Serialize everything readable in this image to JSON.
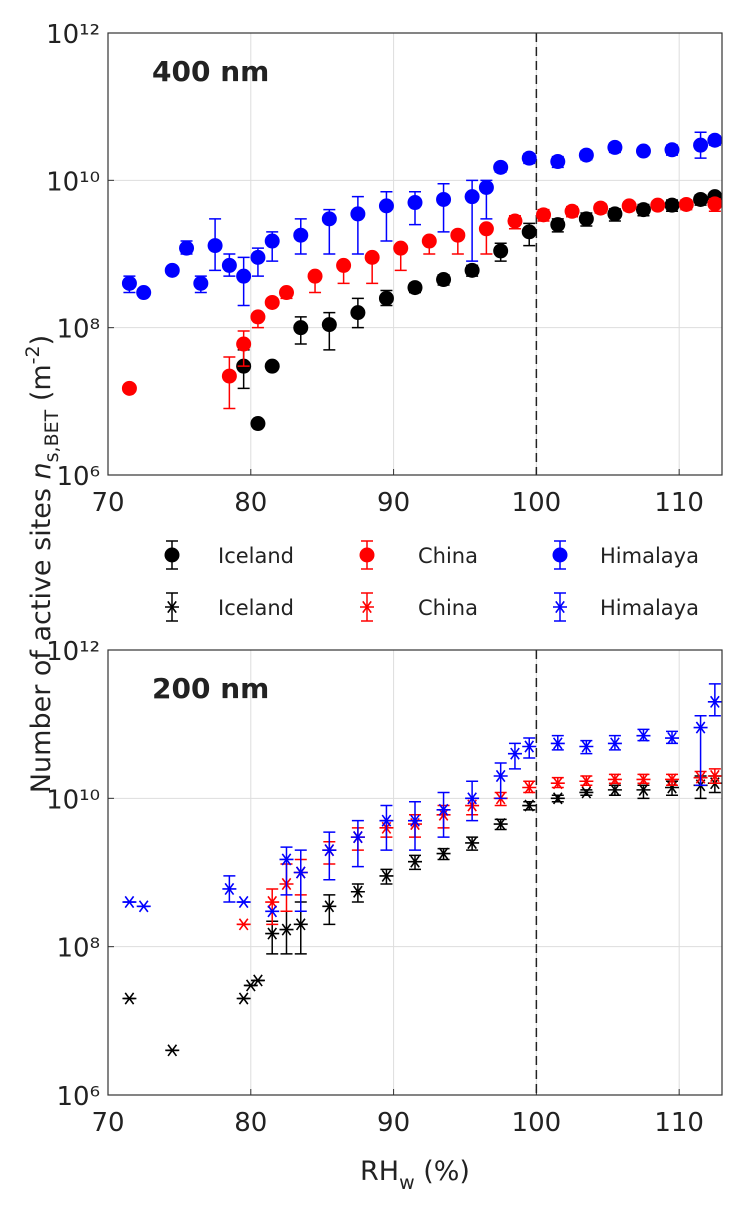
{
  "chart_data": [
    {
      "type": "scatter",
      "title": "400 nm",
      "marker": "circle",
      "log_y": true,
      "grid": true,
      "vline": 100,
      "ylabel_parts": [
        "Number of active sites ",
        "n",
        "s,BET",
        " (m",
        "-2",
        ")"
      ],
      "xlim": [
        70,
        113
      ],
      "xticks": [
        70,
        80,
        90,
        100,
        110
      ],
      "ylim": [
        1000000.0,
        1000000000000.0
      ],
      "yticks": [
        {
          "value": 1000000.0,
          "label": "10⁶"
        },
        {
          "value": 100000000.0,
          "label": "10⁸"
        },
        {
          "value": 10000000000.0,
          "label": "10¹⁰"
        },
        {
          "value": 1000000000000.0,
          "label": "10¹²"
        }
      ],
      "series": [
        {
          "name": "Iceland",
          "color": "#000000",
          "x": [
            79.5,
            80.5,
            81.5,
            83.5,
            85.5,
            87.5,
            89.5,
            91.5,
            93.5,
            95.5,
            97.5,
            99.5,
            101.5,
            103.5,
            105.5,
            107.5,
            109.5,
            111.5,
            112.5
          ],
          "values": [
            30000000.0,
            5000000.0,
            30000000.0,
            100000000.0,
            110000000.0,
            160000000.0,
            250000000.0,
            350000000.0,
            450000000.0,
            600000000.0,
            1100000000.0,
            2000000000.0,
            2500000000.0,
            3000000000.0,
            3500000000.0,
            4000000000.0,
            4600000000.0,
            5500000000.0,
            6000000000.0
          ],
          "lower": [
            15000000.0,
            5000000.0,
            30000000.0,
            60000000.0,
            50000000.0,
            100000000.0,
            200000000.0,
            300000000.0,
            380000000.0,
            500000000.0,
            800000000.0,
            1300000000.0,
            2000000000.0,
            2400000000.0,
            2800000000.0,
            3300000000.0,
            3800000000.0,
            4600000000.0,
            5000000000.0
          ],
          "upper": [
            50000000.0,
            5000000.0,
            30000000.0,
            140000000.0,
            160000000.0,
            250000000.0,
            320000000.0,
            400000000.0,
            520000000.0,
            700000000.0,
            1400000000.0,
            2600000000.0,
            3000000000.0,
            3600000000.0,
            4100000000.0,
            4700000000.0,
            5400000000.0,
            6300000000.0,
            6800000000.0
          ]
        },
        {
          "name": "China",
          "color": "#ff0000",
          "x": [
            71.5,
            78.5,
            79.5,
            80.5,
            81.5,
            82.5,
            84.5,
            86.5,
            88.5,
            90.5,
            92.5,
            94.5,
            96.5,
            98.5,
            100.5,
            102.5,
            104.5,
            106.5,
            108.5,
            110.5,
            112.5
          ],
          "values": [
            15000000.0,
            22000000.0,
            60000000.0,
            140000000.0,
            220000000.0,
            300000000.0,
            500000000.0,
            700000000.0,
            900000000.0,
            1200000000.0,
            1500000000.0,
            1800000000.0,
            2200000000.0,
            2800000000.0,
            3400000000.0,
            3800000000.0,
            4200000000.0,
            4500000000.0,
            4600000000.0,
            4700000000.0,
            4800000000.0
          ],
          "lower": [
            15000000.0,
            8000000.0,
            30000000.0,
            100000000.0,
            200000000.0,
            250000000.0,
            300000000.0,
            400000000.0,
            400000000.0,
            600000000.0,
            1000000000.0,
            1000000000.0,
            1000000000.0,
            2200000000.0,
            2800000000.0,
            3200000000.0,
            3600000000.0,
            3900000000.0,
            4000000000.0,
            4000000000.0,
            3800000000.0
          ],
          "upper": [
            15000000.0,
            40000000.0,
            90000000.0,
            140000000.0,
            220000000.0,
            300000000.0,
            500000000.0,
            700000000.0,
            900000000.0,
            1200000000.0,
            1500000000.0,
            1800000000.0,
            2200000000.0,
            3300000000.0,
            4000000000.0,
            4400000000.0,
            4800000000.0,
            5100000000.0,
            5200000000.0,
            5400000000.0,
            5600000000.0
          ]
        },
        {
          "name": "Himalaya",
          "color": "#0000ff",
          "x": [
            71.5,
            72.5,
            74.5,
            75.5,
            76.5,
            77.5,
            78.5,
            79.5,
            80.5,
            81.5,
            83.5,
            85.5,
            87.5,
            89.5,
            91.5,
            93.5,
            95.5,
            96.5,
            97.5,
            99.5,
            101.5,
            103.5,
            105.5,
            107.5,
            109.5,
            111.5,
            112.5
          ],
          "values": [
            400000000.0,
            300000000.0,
            600000000.0,
            1200000000.0,
            400000000.0,
            1300000000.0,
            700000000.0,
            500000000.0,
            900000000.0,
            1500000000.0,
            1800000000.0,
            3000000000.0,
            3500000000.0,
            4500000000.0,
            5000000000.0,
            5500000000.0,
            6000000000.0,
            8000000000.0,
            15000000000.0,
            20000000000.0,
            18000000000.0,
            22000000000.0,
            28000000000.0,
            25000000000.0,
            26000000000.0,
            30000000000.0,
            35000000000.0
          ],
          "lower": [
            300000000.0,
            300000000.0,
            600000000.0,
            1000000000.0,
            300000000.0,
            600000000.0,
            500000000.0,
            200000000.0,
            500000000.0,
            800000000.0,
            1000000000.0,
            1000000000.0,
            1000000000.0,
            1500000000.0,
            2500000000.0,
            2000000000.0,
            800000000.0,
            3000000000.0,
            13000000000.0,
            17000000000.0,
            15000000000.0,
            19000000000.0,
            24000000000.0,
            22000000000.0,
            22000000000.0,
            20000000000.0,
            30000000000.0
          ],
          "upper": [
            500000000.0,
            300000000.0,
            600000000.0,
            1500000000.0,
            500000000.0,
            3000000000.0,
            1000000000.0,
            900000000.0,
            1200000000.0,
            2000000000.0,
            3000000000.0,
            4000000000.0,
            6000000000.0,
            7000000000.0,
            7000000000.0,
            9000000000.0,
            10000000000.0,
            10000000000.0,
            17000000000.0,
            23000000000.0,
            21000000000.0,
            25000000000.0,
            32000000000.0,
            28000000000.0,
            30000000000.0,
            45000000000.0,
            40000000000.0
          ]
        }
      ]
    },
    {
      "type": "scatter",
      "title": "200 nm",
      "marker": "star",
      "log_y": true,
      "grid": true,
      "vline": 100,
      "xlabel_parts": [
        "RH",
        "w",
        " (%)"
      ],
      "xlim": [
        70,
        113
      ],
      "xticks": [
        70,
        80,
        90,
        100,
        110
      ],
      "ylim": [
        1000000.0,
        1000000000000.0
      ],
      "yticks": [
        {
          "value": 1000000.0,
          "label": "10⁶"
        },
        {
          "value": 100000000.0,
          "label": "10⁸"
        },
        {
          "value": 10000000000.0,
          "label": "10¹⁰"
        },
        {
          "value": 1000000000000.0,
          "label": "10¹²"
        }
      ],
      "series": [
        {
          "name": "Iceland",
          "color": "#000000",
          "x": [
            71.5,
            74.5,
            79.5,
            80.0,
            80.5,
            81.5,
            82.5,
            83.5,
            85.5,
            87.5,
            89.5,
            91.5,
            93.5,
            95.5,
            97.5,
            99.5,
            101.5,
            103.5,
            105.5,
            107.5,
            109.5,
            111.5,
            112.5
          ],
          "values": [
            20000000.0,
            4000000.0,
            20000000.0,
            30000000.0,
            35000000.0,
            150000000.0,
            170000000.0,
            200000000.0,
            350000000.0,
            550000000.0,
            900000000.0,
            1400000000.0,
            1800000000.0,
            2500000000.0,
            4500000000.0,
            8000000000.0,
            10000000000.0,
            12000000000.0,
            13000000000.0,
            13000000000.0,
            14000000000.0,
            15000000000.0,
            16000000000.0
          ],
          "lower": [
            20000000.0,
            4000000.0,
            20000000.0,
            30000000.0,
            35000000.0,
            80000000.0,
            80000000.0,
            80000000.0,
            200000000.0,
            400000000.0,
            700000000.0,
            1100000000.0,
            1500000000.0,
            2000000000.0,
            3800000000.0,
            7000000000.0,
            9000000000.0,
            11000000000.0,
            11000000000.0,
            10000000000.0,
            11000000000.0,
            10000000000.0,
            12000000000.0
          ],
          "upper": [
            20000000.0,
            4000000.0,
            20000000.0,
            30000000.0,
            35000000.0,
            220000000.0,
            300000000.0,
            400000000.0,
            500000000.0,
            700000000.0,
            1100000000.0,
            1700000000.0,
            2100000000.0,
            3000000000.0,
            5200000000.0,
            9000000000.0,
            11000000000.0,
            13000000000.0,
            15000000000.0,
            15000000000.0,
            17000000000.0,
            20000000000.0,
            20000000000.0
          ]
        },
        {
          "name": "China",
          "color": "#ff0000",
          "x": [
            79.5,
            81.5,
            82.5,
            83.5,
            85.5,
            87.5,
            89.5,
            91.5,
            93.5,
            95.5,
            97.5,
            99.5,
            101.5,
            103.5,
            105.5,
            107.5,
            109.5,
            111.5,
            112.5
          ],
          "values": [
            200000000.0,
            400000000.0,
            700000000.0,
            1000000000.0,
            2000000000.0,
            3000000000.0,
            4000000000.0,
            4500000000.0,
            6000000000.0,
            8000000000.0,
            10000000000.0,
            14000000000.0,
            16000000000.0,
            17000000000.0,
            18000000000.0,
            18000000000.0,
            18000000000.0,
            19000000000.0,
            20000000000.0
          ],
          "lower": [
            200000000.0,
            200000000.0,
            300000000.0,
            500000000.0,
            1300000000.0,
            2000000000.0,
            3000000000.0,
            3000000000.0,
            4000000000.0,
            6000000000.0,
            8000000000.0,
            12000000000.0,
            14000000000.0,
            15000000000.0,
            16000000000.0,
            16000000000.0,
            15000000000.0,
            15000000000.0,
            16000000000.0
          ],
          "upper": [
            200000000.0,
            600000000.0,
            1300000000.0,
            1500000000.0,
            2600000000.0,
            4000000000.0,
            5000000000.0,
            6000000000.0,
            8000000000.0,
            10000000000.0,
            12000000000.0,
            17000000000.0,
            19000000000.0,
            20000000000.0,
            21000000000.0,
            21000000000.0,
            21000000000.0,
            23000000000.0,
            25000000000.0
          ]
        },
        {
          "name": "Himalaya",
          "color": "#0000ff",
          "x": [
            71.5,
            72.5,
            78.5,
            79.5,
            81.5,
            82.5,
            83.5,
            85.5,
            87.5,
            89.5,
            91.5,
            93.5,
            95.5,
            97.5,
            98.5,
            99.5,
            101.5,
            103.5,
            105.5,
            107.5,
            109.5,
            111.5,
            112.5
          ],
          "values": [
            400000000.0,
            350000000.0,
            600000000.0,
            400000000.0,
            300000000.0,
            1500000000.0,
            1000000000.0,
            2000000000.0,
            3000000000.0,
            5000000000.0,
            5000000000.0,
            7000000000.0,
            10000000000.0,
            20000000000.0,
            40000000000.0,
            50000000000.0,
            55000000000.0,
            50000000000.0,
            55000000000.0,
            70000000000.0,
            65000000000.0,
            90000000000.0,
            200000000000.0
          ],
          "lower": [
            400000000.0,
            350000000.0,
            400000000.0,
            400000000.0,
            300000000.0,
            500000000.0,
            300000000.0,
            800000000.0,
            1200000000.0,
            2000000000.0,
            2000000000.0,
            3000000000.0,
            5000000000.0,
            10000000000.0,
            25000000000.0,
            35000000000.0,
            45000000000.0,
            40000000000.0,
            45000000000.0,
            60000000000.0,
            55000000000.0,
            15000000000.0,
            130000000000.0
          ],
          "upper": [
            400000000.0,
            350000000.0,
            900000000.0,
            400000000.0,
            300000000.0,
            2200000000.0,
            2000000000.0,
            3500000000.0,
            5000000000.0,
            8000000000.0,
            9000000000.0,
            12000000000.0,
            17000000000.0,
            30000000000.0,
            55000000000.0,
            65000000000.0,
            70000000000.0,
            60000000000.0,
            70000000000.0,
            85000000000.0,
            80000000000.0,
            130000000000.0,
            350000000000.0
          ]
        }
      ]
    }
  ]
}
